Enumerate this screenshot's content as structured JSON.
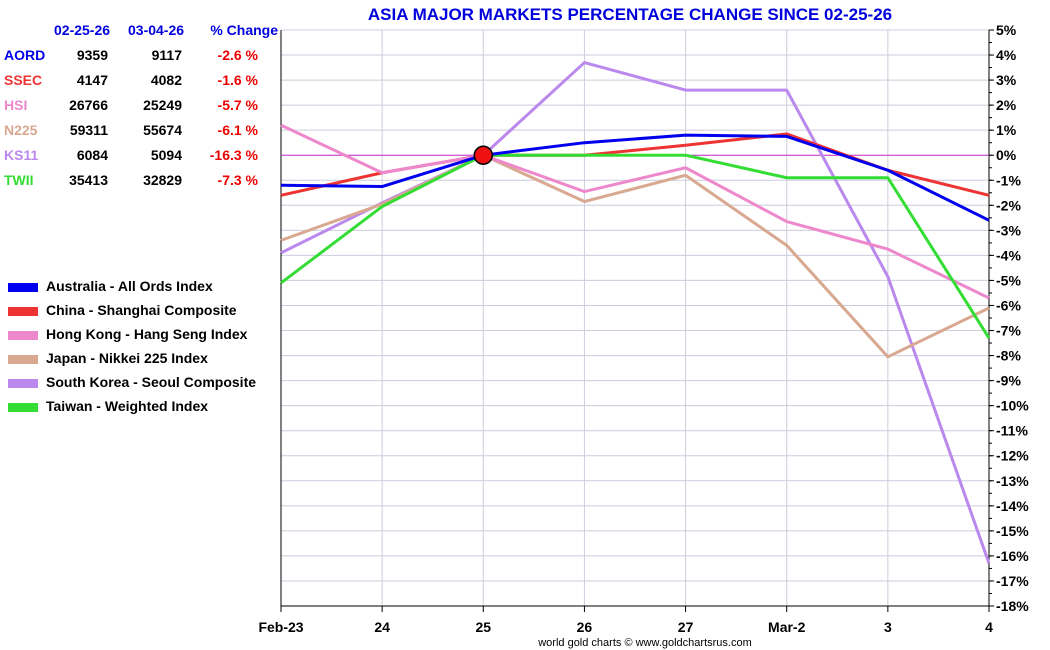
{
  "chart_data": {
    "type": "line",
    "title": "ASIA MAJOR MARKETS PERCENTAGE CHANGE SINCE 02-25-26",
    "x": [
      "Feb-23",
      "24",
      "25",
      "26",
      "27",
      "Mar-2",
      "3",
      "4"
    ],
    "ylim": [
      -18,
      5
    ],
    "yticks": [
      "5%",
      "4%",
      "3%",
      "2%",
      "1%",
      "0%",
      "-1%",
      "-2%",
      "-3%",
      "-4%",
      "-5%",
      "-6%",
      "-7%",
      "-8%",
      "-9%",
      "-10%",
      "-11%",
      "-12%",
      "-13%",
      "-14%",
      "-15%",
      "-16%",
      "-17%",
      "-18%"
    ],
    "ytick_values": [
      5,
      4,
      3,
      2,
      1,
      0,
      -1,
      -2,
      -3,
      -4,
      -5,
      -6,
      -7,
      -8,
      -9,
      -10,
      -11,
      -12,
      -13,
      -14,
      -15,
      -16,
      -17,
      -18
    ],
    "grid": true,
    "baseline": {
      "value": 0,
      "color": "#cc33cc"
    },
    "marker": {
      "x_index": 2,
      "value": 0,
      "color": "#ee1111"
    },
    "series": [
      {
        "name": "Australia - All Ords Index",
        "color": "#0000ee",
        "values": [
          -1.2,
          -1.25,
          0,
          0.5,
          0.8,
          0.75,
          -0.6,
          -2.6
        ]
      },
      {
        "name": "China - Shanghai Composite",
        "color": "#ee3333",
        "values": [
          -1.6,
          -0.7,
          0,
          0,
          0.4,
          0.85,
          -0.6,
          -1.6
        ]
      },
      {
        "name": "Hong Kong - Hang Seng Index",
        "color": "#ee88cc",
        "values": [
          1.2,
          -0.7,
          0,
          -1.45,
          -0.5,
          -2.65,
          -3.75,
          -5.7
        ]
      },
      {
        "name": "Japan - Nikkei 225 Index",
        "color": "#d8a890",
        "values": [
          -3.4,
          -1.95,
          0,
          -1.85,
          -0.8,
          -3.6,
          -8.05,
          -6.1
        ]
      },
      {
        "name": "South Korea - Seoul Composite",
        "color": "#bb88ee",
        "values": [
          -3.9,
          -1.9,
          0,
          3.7,
          2.6,
          2.6,
          -4.85,
          -16.3
        ]
      },
      {
        "name": "Taiwan - Weighted Index",
        "color": "#33dd33",
        "values": [
          -5.1,
          -2.05,
          0,
          0,
          0,
          -0.9,
          -0.9,
          -7.3
        ]
      }
    ],
    "source": "world gold charts © www.goldchartsrus.com"
  },
  "table": {
    "headers": [
      "02-25-26",
      "03-04-26",
      "% Change"
    ],
    "rows": [
      {
        "code": "AORD",
        "color": "#0000ee",
        "start": "9359",
        "end": "9117",
        "change": "-2.6 %"
      },
      {
        "code": "SSEC",
        "color": "#ee3333",
        "start": "4147",
        "end": "4082",
        "change": "-1.6 %"
      },
      {
        "code": "HSI",
        "color": "#ee88cc",
        "start": "26766",
        "end": "25249",
        "change": "-5.7 %"
      },
      {
        "code": "N225",
        "color": "#d8a890",
        "start": "59311",
        "end": "55674",
        "change": "-6.1 %"
      },
      {
        "code": "KS11",
        "color": "#bb88ee",
        "start": "6084",
        "end": "5094",
        "change": "-16.3 %"
      },
      {
        "code": "TWII",
        "color": "#33dd33",
        "start": "35413",
        "end": "32829",
        "change": "-7.3 %"
      }
    ]
  }
}
